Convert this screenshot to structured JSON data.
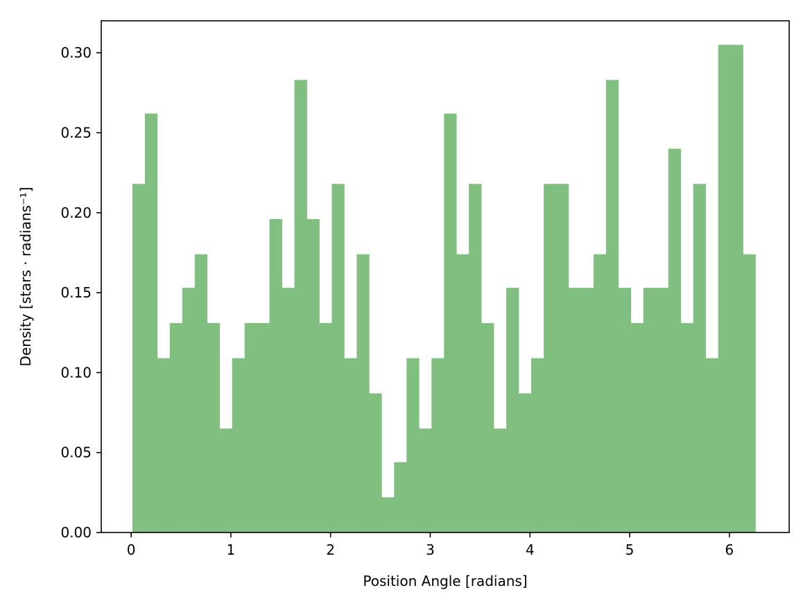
{
  "chart_data": {
    "type": "bar",
    "xlabel": "Position Angle [radians]",
    "ylabel": "Density [stars · radians⁻¹]",
    "xlim": [
      -0.3,
      6.6
    ],
    "ylim": [
      0,
      0.32
    ],
    "x_ticks": [
      0,
      1,
      2,
      3,
      4,
      5,
      6
    ],
    "x_tick_labels": [
      "0",
      "1",
      "2",
      "3",
      "4",
      "5",
      "6"
    ],
    "y_ticks": [
      0,
      0.05,
      0.1,
      0.15,
      0.2,
      0.25,
      0.3
    ],
    "y_tick_labels": [
      "0.00",
      "0.05",
      "0.10",
      "0.15",
      "0.20",
      "0.25",
      "0.30"
    ],
    "grid": false,
    "bin_edges": [
      0.0125,
      0.1375,
      0.2625,
      0.3875,
      0.5125,
      0.6375,
      0.7625,
      0.8875,
      1.0125,
      1.1375,
      1.2625,
      1.3875,
      1.5125,
      1.6375,
      1.7625,
      1.8875,
      2.0125,
      2.1375,
      2.2625,
      2.3875,
      2.5125,
      2.6375,
      2.7625,
      2.8875,
      3.0125,
      3.1375,
      3.2625,
      3.3875,
      3.5125,
      3.6375,
      3.7625,
      3.8875,
      4.0125,
      4.1375,
      4.2625,
      4.3875,
      4.5125,
      4.6375,
      4.7625,
      4.8875,
      5.0125,
      5.1375,
      5.2625,
      5.3875,
      5.5125,
      5.6375,
      5.7625,
      5.8875,
      6.0125,
      6.1375,
      6.2625
    ],
    "values": [
      0.218,
      0.262,
      0.109,
      0.131,
      0.153,
      0.174,
      0.131,
      0.065,
      0.109,
      0.131,
      0.131,
      0.196,
      0.153,
      0.283,
      0.196,
      0.131,
      0.218,
      0.109,
      0.174,
      0.087,
      0.022,
      0.044,
      0.109,
      0.065,
      0.109,
      0.262,
      0.174,
      0.218,
      0.131,
      0.065,
      0.153,
      0.087,
      0.109,
      0.218,
      0.218,
      0.153,
      0.153,
      0.174,
      0.283,
      0.153,
      0.131,
      0.153,
      0.153,
      0.24,
      0.131,
      0.218,
      0.109,
      0.305,
      0.305,
      0.174
    ],
    "colors": {
      "bar": "#80bf80",
      "axes": "#000000",
      "background": "#ffffff"
    }
  }
}
